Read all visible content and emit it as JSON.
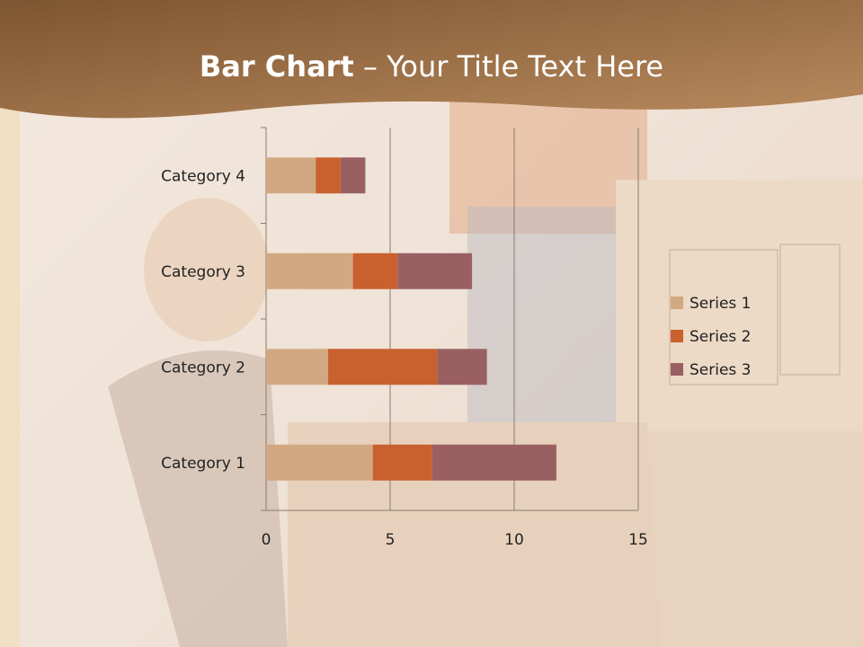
{
  "title": {
    "bold": "Bar Chart",
    "rest": " – Your Title Text Here"
  },
  "colors": {
    "header": "#9a6a40",
    "series": [
      "#D2A882",
      "#C9612F",
      "#9A6061"
    ]
  },
  "chart_data": {
    "type": "bar",
    "orientation": "horizontal",
    "stacked": true,
    "categories": [
      "Category 1",
      "Category 2",
      "Category 3",
      "Category 4"
    ],
    "series": [
      {
        "name": "Series 1",
        "values": [
          4.3,
          2.5,
          3.5,
          2
        ]
      },
      {
        "name": "Series 2",
        "values": [
          2.4,
          4.4,
          1.8,
          1
        ]
      },
      {
        "name": "Series 3",
        "values": [
          5,
          2,
          3,
          1
        ]
      }
    ],
    "xlim": [
      0,
      15
    ],
    "xticks": [
      0,
      5,
      10,
      15
    ],
    "grid": "vertical",
    "legend": "right"
  }
}
